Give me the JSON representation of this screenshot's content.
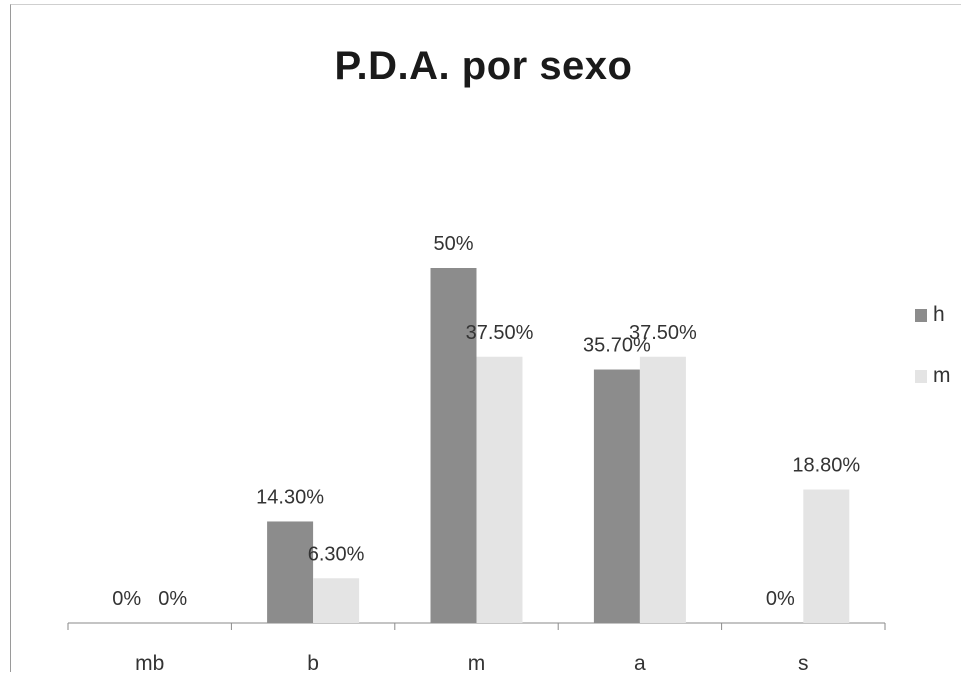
{
  "chart_data": {
    "type": "bar",
    "title": "P.D.A. por sexo",
    "categories": [
      "mb",
      "b",
      "m",
      "a",
      "s"
    ],
    "series": [
      {
        "name": "h",
        "values": [
          0,
          14.3,
          50,
          35.7,
          0
        ],
        "labels": [
          "0%",
          "14.30%",
          "50%",
          "35.70%",
          "0%"
        ],
        "color": "#8c8c8c"
      },
      {
        "name": "m",
        "values": [
          0,
          6.3,
          37.5,
          37.5,
          18.8
        ],
        "labels": [
          "0%",
          "6.30%",
          "37.50%",
          "37.50%",
          "18.80%"
        ],
        "color": "#e4e4e4"
      }
    ],
    "ylim": [
      0,
      55
    ],
    "grid": false,
    "legend": "right"
  }
}
